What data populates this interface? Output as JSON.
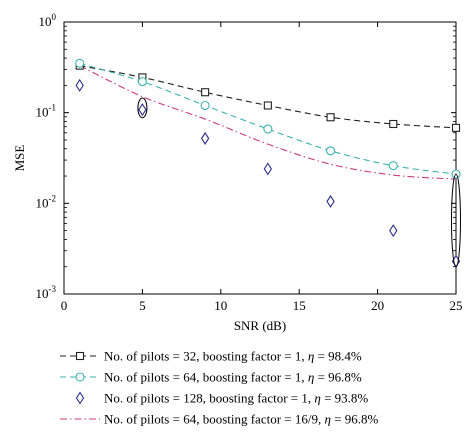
{
  "chart_data": {
    "type": "line",
    "title": "",
    "xlabel": "SNR (dB)",
    "ylabel": "MSE",
    "xlim": [
      0,
      25
    ],
    "ylim": [
      0.001,
      1
    ],
    "y_scale": "log",
    "grid": false,
    "legend_position": "bottom",
    "x_ticks": [
      0,
      5,
      10,
      15,
      20,
      25
    ],
    "x_tick_labels": [
      "0",
      "5",
      "10",
      "15",
      "20",
      "25"
    ],
    "y_ticks": [
      1,
      0.1,
      0.01,
      0.001
    ],
    "y_tick_labels": [
      {
        "base": "10",
        "exp": "0"
      },
      {
        "base": "10",
        "exp": "-1"
      },
      {
        "base": "10",
        "exp": "-2"
      },
      {
        "base": "10",
        "exp": "-3"
      }
    ],
    "series": [
      {
        "name": "No. of pilots = 32, boosting factor = 1, η = 98.4%",
        "legend_parts": [
          "No. of pilots = 32, boosting factor = 1, ",
          "η",
          " = 98.4%"
        ],
        "color": "#222222",
        "line": "dashed",
        "marker": "square",
        "curve": {
          "x": [
            1,
            5,
            9,
            13,
            17,
            21,
            25
          ],
          "y": [
            0.33,
            0.245,
            0.168,
            0.12,
            0.089,
            0.075,
            0.068
          ]
        },
        "markers": {
          "x": [
            1,
            5,
            9,
            13,
            17,
            21,
            25
          ],
          "y": [
            0.33,
            0.245,
            0.168,
            0.12,
            0.089,
            0.075,
            0.068
          ]
        }
      },
      {
        "name": "No. of pilots = 64, boosting factor = 1, η = 96.8%",
        "legend_parts": [
          "No. of pilots = 64, boosting factor = 1, ",
          "η",
          " = 96.8%"
        ],
        "color": "#3bb3b0",
        "line": "dashed",
        "marker": "circle",
        "curve": {
          "x": [
            1,
            5,
            9,
            13,
            17,
            21,
            25
          ],
          "y": [
            0.35,
            0.22,
            0.12,
            0.066,
            0.038,
            0.026,
            0.021
          ]
        },
        "markers": {
          "x": [
            1,
            5,
            9,
            13,
            17,
            21,
            25
          ],
          "y": [
            0.35,
            0.22,
            0.12,
            0.066,
            0.038,
            0.026,
            0.021
          ]
        }
      },
      {
        "name": "No. of pilots = 128, boosting factor = 1, η = 93.8%",
        "legend_parts": [
          "No. of pilots = 128, boosting factor = 1, ",
          "η",
          " = 93.8%"
        ],
        "color": "#2a2a8c",
        "line": "none",
        "marker": "diamond",
        "markers": {
          "x": [
            1,
            5,
            9,
            13,
            17,
            21,
            25
          ],
          "y": [
            0.2,
            0.108,
            0.052,
            0.024,
            0.0105,
            0.005,
            0.0023
          ]
        }
      },
      {
        "name": "No. of pilots = 64, boosting factor = 16/9, η = 96.8%",
        "legend_parts": [
          "No. of pilots = 64, boosting factor = 16/9, ",
          "η",
          " = 96.8%"
        ],
        "color": "#cc3b80",
        "line": "dashdot",
        "marker": "none",
        "curve": {
          "x": [
            1,
            5,
            9,
            13,
            17,
            21,
            25
          ],
          "y": [
            0.33,
            0.15,
            0.085,
            0.045,
            0.027,
            0.0205,
            0.0185
          ]
        }
      }
    ],
    "annotations": [
      {
        "type": "ellipse",
        "x": 5,
        "y_low": 0.088,
        "y_high": 0.145
      },
      {
        "type": "ellipse",
        "x": 25,
        "y_low": 0.002,
        "y_high": 0.021
      }
    ]
  }
}
